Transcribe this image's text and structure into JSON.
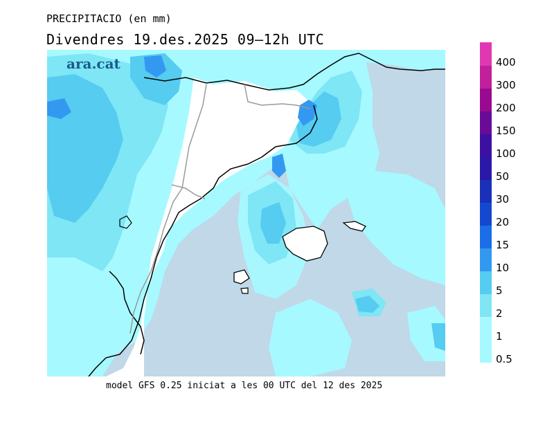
{
  "header": {
    "title": "PRECIPITACIO (en mm)",
    "subtitle": "Divendres  19.des.2025 09–12h UTC"
  },
  "logo": "ara.cat",
  "footer": "model GFS 0.25 iniciat a les 00 UTC del 12 des 2025",
  "legend": {
    "levels": [
      {
        "label": "0.5",
        "color": "#a6f9ff"
      },
      {
        "label": "1",
        "color": "#a6f9ff"
      },
      {
        "label": "2",
        "color": "#7ee6f5"
      },
      {
        "label": "5",
        "color": "#55ccf0"
      },
      {
        "label": "10",
        "color": "#3399f0"
      },
      {
        "label": "15",
        "color": "#1a6ee8"
      },
      {
        "label": "20",
        "color": "#1448d0"
      },
      {
        "label": "30",
        "color": "#1a30b8"
      },
      {
        "label": "50",
        "color": "#2a18a8"
      },
      {
        "label": "100",
        "color": "#3c10a0"
      },
      {
        "label": "150",
        "color": "#6a0a98"
      },
      {
        "label": "200",
        "color": "#9a0a90"
      },
      {
        "label": "300",
        "color": "#c0209c"
      },
      {
        "label": "400",
        "color": "#e038b0"
      }
    ],
    "top_color": "#ff44c8"
  }
}
